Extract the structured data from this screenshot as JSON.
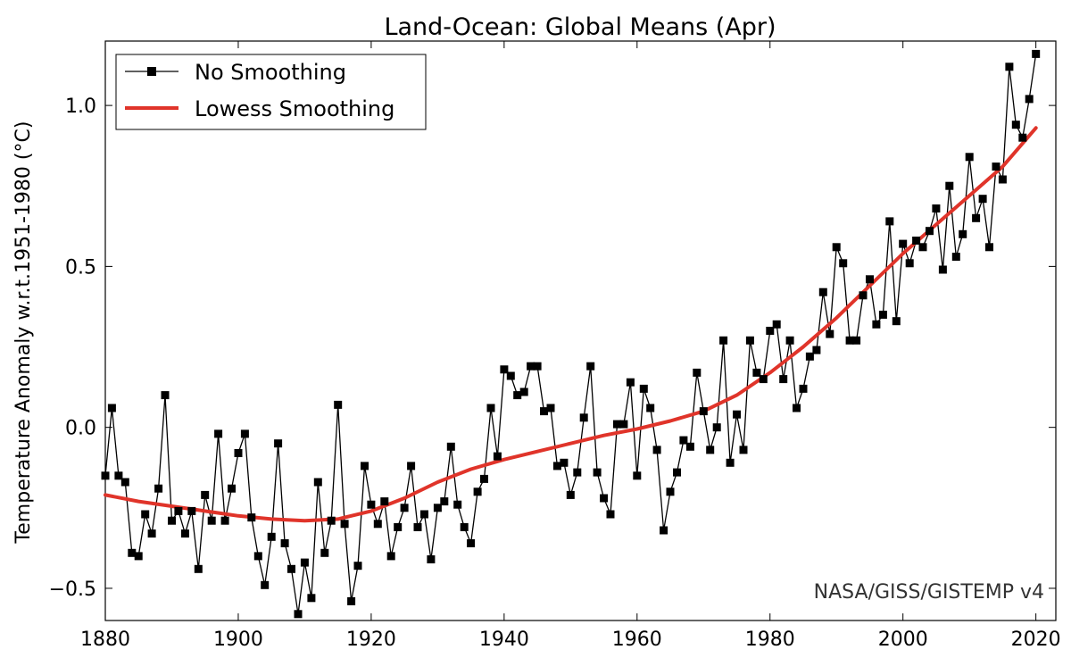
{
  "chart_data": {
    "type": "line",
    "title": "Land-Ocean: Global Means (Apr)",
    "xlabel": "",
    "ylabel": "Temperature Anomaly w.r.t.1951-1980 (°C)",
    "credit": "NASA/GISS/GISTEMP v4",
    "xlim": [
      1880,
      2023
    ],
    "ylim": [
      -0.6,
      1.2
    ],
    "xticks": [
      1880,
      1900,
      1920,
      1940,
      1960,
      1980,
      2000,
      2020
    ],
    "xtick_labels": [
      "1880",
      "1900",
      "1920",
      "1940",
      "1960",
      "1980",
      "2000",
      "2020"
    ],
    "yticks": [
      -0.5,
      0.0,
      0.5,
      1.0
    ],
    "ytick_labels": [
      "−0.5",
      "0.0",
      "0.5",
      "1.0"
    ],
    "legend_position": "top-left",
    "series": [
      {
        "name": "No Smoothing",
        "color": "#000000",
        "marker": "square",
        "x": [
          1880,
          1881,
          1882,
          1883,
          1884,
          1885,
          1886,
          1887,
          1888,
          1889,
          1890,
          1891,
          1892,
          1893,
          1894,
          1895,
          1896,
          1897,
          1898,
          1899,
          1900,
          1901,
          1902,
          1903,
          1904,
          1905,
          1906,
          1907,
          1908,
          1909,
          1910,
          1911,
          1912,
          1913,
          1914,
          1915,
          1916,
          1917,
          1918,
          1919,
          1920,
          1921,
          1922,
          1923,
          1924,
          1925,
          1926,
          1927,
          1928,
          1929,
          1930,
          1931,
          1932,
          1933,
          1934,
          1935,
          1936,
          1937,
          1938,
          1939,
          1940,
          1941,
          1942,
          1943,
          1944,
          1945,
          1946,
          1947,
          1948,
          1949,
          1950,
          1951,
          1952,
          1953,
          1954,
          1955,
          1956,
          1957,
          1958,
          1959,
          1960,
          1961,
          1962,
          1963,
          1964,
          1965,
          1966,
          1967,
          1968,
          1969,
          1970,
          1971,
          1972,
          1973,
          1974,
          1975,
          1976,
          1977,
          1978,
          1979,
          1980,
          1981,
          1982,
          1983,
          1984,
          1985,
          1986,
          1987,
          1988,
          1989,
          1990,
          1991,
          1992,
          1993,
          1994,
          1995,
          1996,
          1997,
          1998,
          1999,
          2000,
          2001,
          2002,
          2003,
          2004,
          2005,
          2006,
          2007,
          2008,
          2009,
          2010,
          2011,
          2012,
          2013,
          2014,
          2015,
          2016,
          2017,
          2018,
          2019,
          2020
        ],
        "y": [
          -0.15,
          0.06,
          -0.15,
          -0.17,
          -0.39,
          -0.4,
          -0.27,
          -0.33,
          -0.19,
          0.1,
          -0.29,
          -0.26,
          -0.33,
          -0.26,
          -0.44,
          -0.21,
          -0.29,
          -0.02,
          -0.29,
          -0.19,
          -0.08,
          -0.02,
          -0.28,
          -0.4,
          -0.49,
          -0.34,
          -0.05,
          -0.36,
          -0.44,
          -0.58,
          -0.42,
          -0.53,
          -0.17,
          -0.39,
          -0.29,
          0.07,
          -0.3,
          -0.54,
          -0.43,
          -0.12,
          -0.24,
          -0.3,
          -0.23,
          -0.4,
          -0.31,
          -0.25,
          -0.12,
          -0.31,
          -0.27,
          -0.41,
          -0.25,
          -0.23,
          -0.06,
          -0.24,
          -0.31,
          -0.36,
          -0.2,
          -0.16,
          0.06,
          -0.09,
          0.18,
          0.16,
          0.1,
          0.11,
          0.19,
          0.19,
          0.05,
          0.06,
          -0.12,
          -0.11,
          -0.21,
          -0.14,
          0.03,
          0.19,
          -0.14,
          -0.22,
          -0.27,
          0.01,
          0.01,
          0.14,
          -0.15,
          0.12,
          0.06,
          -0.07,
          -0.32,
          -0.2,
          -0.14,
          -0.04,
          -0.06,
          0.17,
          0.05,
          -0.07,
          0.0,
          0.27,
          -0.11,
          0.04,
          -0.07,
          0.27,
          0.17,
          0.15,
          0.3,
          0.32,
          0.15,
          0.27,
          0.06,
          0.12,
          0.22,
          0.24,
          0.42,
          0.29,
          0.56,
          0.51,
          0.27,
          0.27,
          0.41,
          0.46,
          0.32,
          0.35,
          0.64,
          0.33,
          0.57,
          0.51,
          0.58,
          0.56,
          0.61,
          0.68,
          0.49,
          0.75,
          0.53,
          0.6,
          0.84,
          0.65,
          0.71,
          0.56,
          0.81,
          0.77,
          1.12,
          0.94,
          0.9,
          1.02,
          1.16
        ]
      },
      {
        "name": "Lowess Smoothing",
        "color": "#e0342a",
        "x": [
          1880,
          1885,
          1890,
          1895,
          1900,
          1905,
          1910,
          1915,
          1920,
          1925,
          1930,
          1935,
          1940,
          1945,
          1950,
          1955,
          1960,
          1965,
          1970,
          1975,
          1980,
          1985,
          1990,
          1995,
          2000,
          2005,
          2010,
          2015,
          2020
        ],
        "y": [
          -0.21,
          -0.23,
          -0.245,
          -0.26,
          -0.275,
          -0.285,
          -0.29,
          -0.285,
          -0.26,
          -0.22,
          -0.17,
          -0.13,
          -0.1,
          -0.075,
          -0.05,
          -0.025,
          -0.005,
          0.02,
          0.05,
          0.1,
          0.17,
          0.25,
          0.34,
          0.44,
          0.54,
          0.63,
          0.72,
          0.81,
          0.93
        ]
      }
    ]
  }
}
